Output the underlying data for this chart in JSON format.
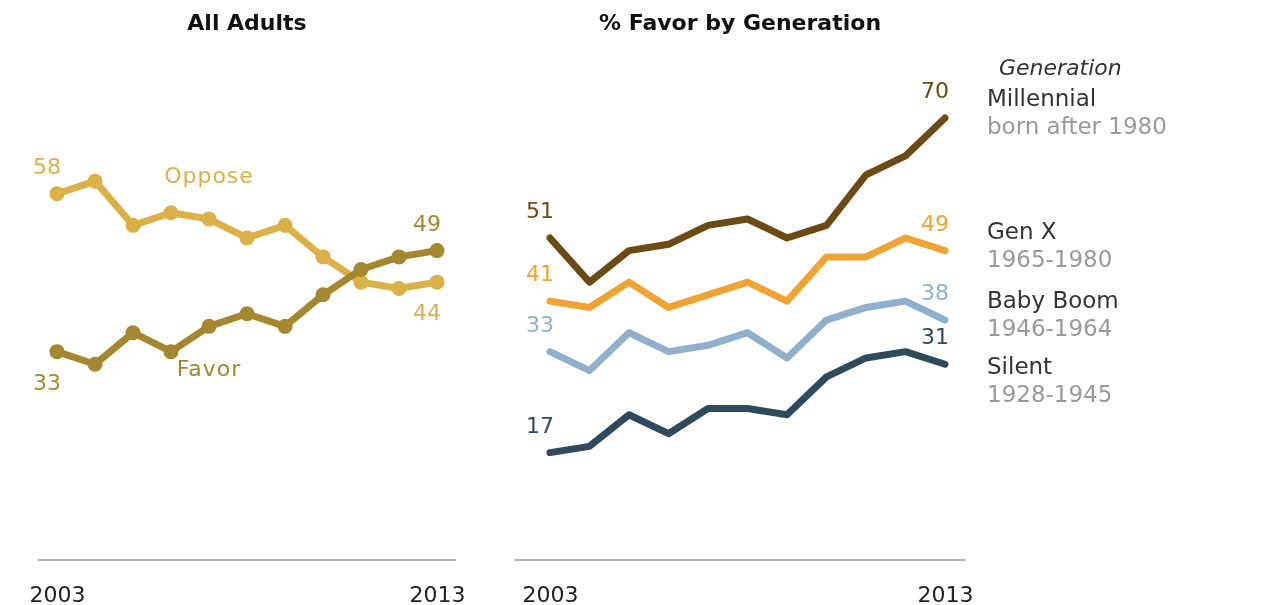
{
  "chart_data": [
    {
      "type": "line",
      "title": "All Adults",
      "categories": [
        "2003",
        null,
        null,
        null,
        null,
        null,
        null,
        null,
        null,
        null,
        "2013"
      ],
      "marker": "circle",
      "legend": false,
      "series": [
        {
          "name": "Oppose",
          "color": "#dbb046",
          "values": [
            58,
            60,
            53,
            55,
            54,
            51,
            53,
            48,
            44,
            43,
            44
          ],
          "value_labels": [
            "58",
            null,
            null,
            null,
            null,
            null,
            null,
            null,
            null,
            null,
            "44"
          ]
        },
        {
          "name": "Favor",
          "color": "#a4872e",
          "values": [
            33,
            31,
            36,
            33,
            37,
            39,
            37,
            42,
            46,
            48,
            49
          ],
          "value_labels": [
            "33",
            null,
            null,
            null,
            null,
            null,
            null,
            null,
            null,
            null,
            "49"
          ]
        }
      ]
    },
    {
      "type": "line",
      "title": "% Favor by Generation",
      "legend_title": "Generation",
      "categories": [
        "2003",
        null,
        null,
        null,
        null,
        null,
        null,
        null,
        null,
        null,
        "2013"
      ],
      "marker": "none",
      "legend": "right",
      "annotations": [
        "born after 1980",
        "1965-1980",
        "1946-1964",
        "1928-1945"
      ],
      "series": [
        {
          "name": "Millennial",
          "color": "#6b4a14",
          "values": [
            51,
            44,
            49,
            50,
            53,
            54,
            51,
            53,
            61,
            64,
            70
          ],
          "value_labels": [
            "51",
            null,
            null,
            null,
            null,
            null,
            null,
            null,
            null,
            null,
            "70"
          ]
        },
        {
          "name": "Gen X",
          "color": "#f0a332",
          "values": [
            41,
            40,
            44,
            40,
            42,
            44,
            41,
            48,
            48,
            51,
            49
          ],
          "value_labels": [
            "41",
            null,
            null,
            null,
            null,
            null,
            null,
            null,
            null,
            null,
            "49"
          ]
        },
        {
          "name": "Baby Boom",
          "color": "#8fb0cc",
          "values": [
            33,
            30,
            36,
            33,
            34,
            36,
            32,
            38,
            40,
            41,
            38
          ],
          "value_labels": [
            "33",
            null,
            null,
            null,
            null,
            null,
            null,
            null,
            null,
            null,
            "38"
          ]
        },
        {
          "name": "Silent",
          "color": "#2f4a5c",
          "values": [
            17,
            18,
            23,
            20,
            24,
            24,
            23,
            29,
            32,
            33,
            31
          ],
          "value_labels": [
            "17",
            null,
            null,
            null,
            null,
            null,
            null,
            null,
            null,
            null,
            "31"
          ]
        }
      ]
    }
  ]
}
